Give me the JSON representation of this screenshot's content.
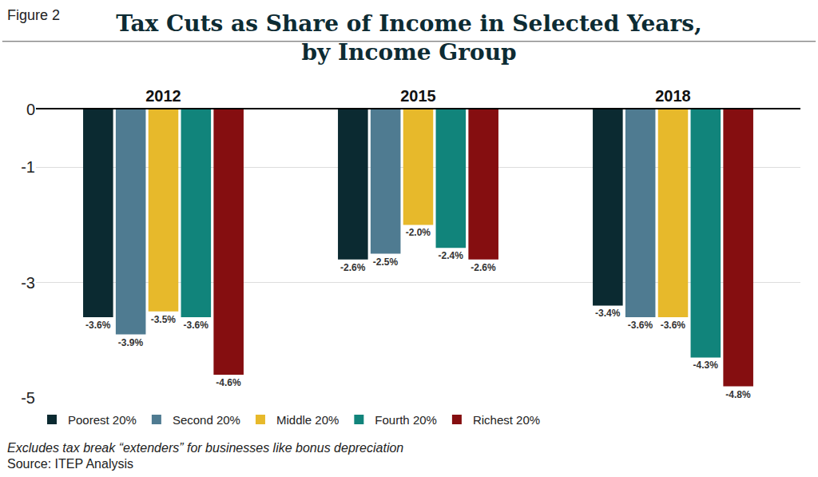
{
  "chart_data": {
    "type": "bar",
    "figure_label": "Figure 2",
    "title": "Tax Cuts as Share of Income in Selected Years,\nby Income Group",
    "categories": [
      "2012",
      "2015",
      "2018"
    ],
    "series": [
      {
        "name": "Poorest 20%",
        "color": "#0b2a31",
        "values": [
          -3.6,
          -2.6,
          -3.4
        ],
        "value_labels": [
          "-3.6%",
          "-2.6%",
          "-3.4%"
        ]
      },
      {
        "name": "Second 20%",
        "color": "#4f7b91",
        "values": [
          -3.9,
          -2.5,
          -3.6
        ],
        "value_labels": [
          "-3.9%",
          "-2.5%",
          "-3.6%"
        ]
      },
      {
        "name": "Middle 20%",
        "color": "#e7b92b",
        "values": [
          -3.5,
          -2.0,
          -3.6
        ],
        "value_labels": [
          "-3.5%",
          "-2.0%",
          "-3.6%"
        ]
      },
      {
        "name": "Fourth 20%",
        "color": "#11847b",
        "values": [
          -3.6,
          -2.4,
          -4.3
        ],
        "value_labels": [
          "-3.6%",
          "-2.4%",
          "-4.3%"
        ]
      },
      {
        "name": "Richest 20%",
        "color": "#850e10",
        "values": [
          -4.6,
          -2.6,
          -4.8
        ],
        "value_labels": [
          "-4.6%",
          "-2.6%",
          "-4.8%"
        ]
      }
    ],
    "ylim": [
      -5,
      0
    ],
    "yticks": [
      0,
      -1,
      -3,
      -5
    ],
    "grid": true,
    "legend": "bottom",
    "data_labels": true,
    "notes": [
      "Excludes tax break “extenders” for businesses like bonus depreciation",
      "Source: ITEP Analysis"
    ]
  }
}
